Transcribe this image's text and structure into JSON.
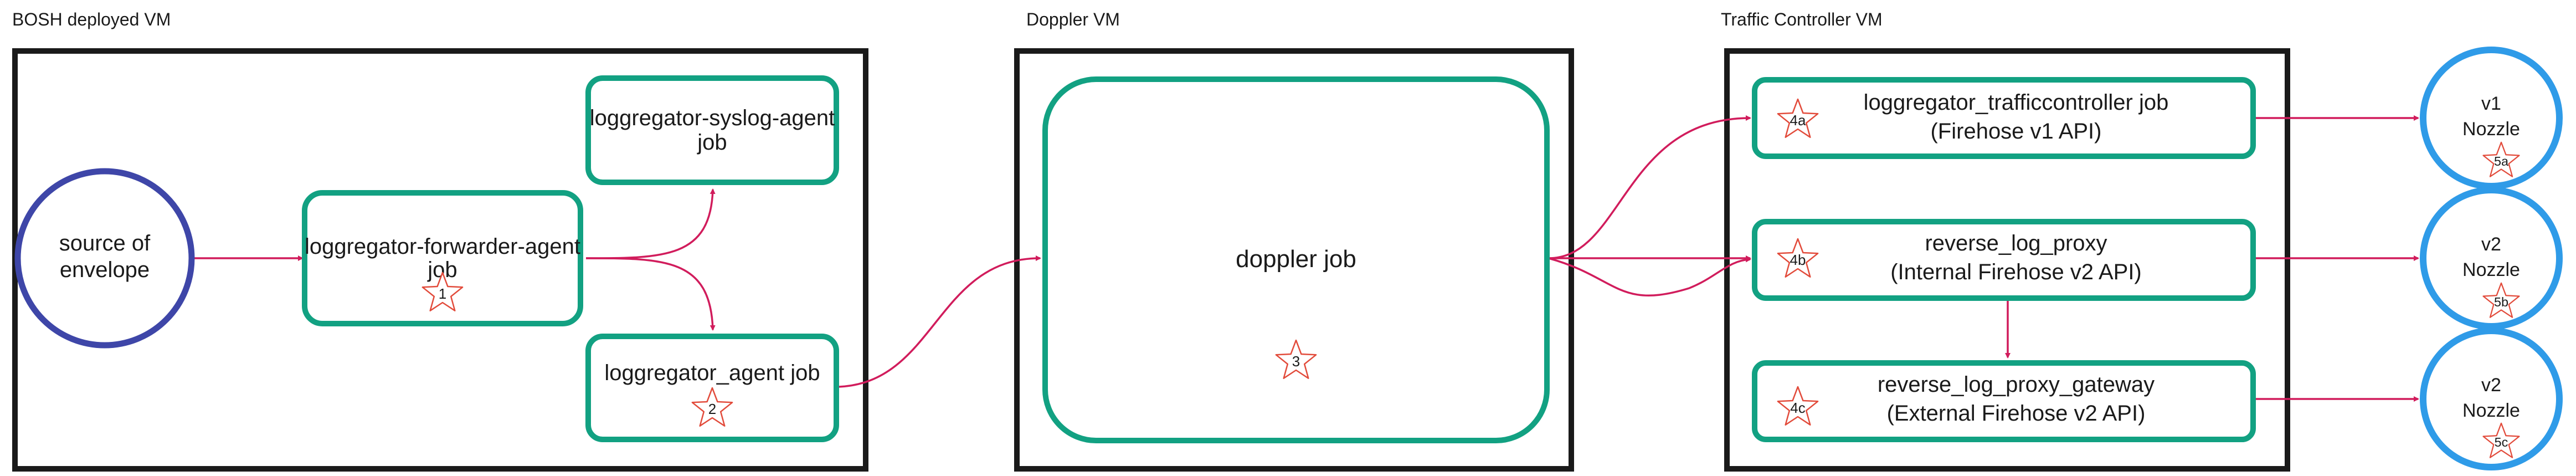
{
  "vms": {
    "bosh": {
      "label": "BOSH deployed VM"
    },
    "doppler": {
      "label": "Doppler VM"
    },
    "traffic": {
      "label": "Traffic Controller VM"
    }
  },
  "nodes": {
    "source": {
      "line1": "source of",
      "line2": "envelope"
    },
    "forwarder": {
      "line1": "loggregator-forwarder-agent",
      "line2": "job",
      "star": "1"
    },
    "syslog": {
      "line1": "loggregator-syslog-agent",
      "line2": "job"
    },
    "agent": {
      "line1": "loggregator_agent job",
      "star": "2"
    },
    "doppler_job": {
      "line1": "doppler job",
      "star": "3"
    },
    "tc": {
      "line1": "loggregator_trafficcontroller job",
      "line2": "(Firehose v1 API)",
      "star": "4a"
    },
    "rlp": {
      "line1": "reverse_log_proxy",
      "line2": "(Internal Firehose v2 API)",
      "star": "4b"
    },
    "rlpg": {
      "line1": "reverse_log_proxy_gateway",
      "line2": "(External Firehose v2 API)",
      "star": "4c"
    }
  },
  "nozzles": {
    "a": {
      "line1": "v1",
      "line2": "Nozzle",
      "star": "5a"
    },
    "b": {
      "line1": "v2",
      "line2": "Nozzle",
      "star": "5b"
    },
    "c": {
      "line1": "v2",
      "line2": "Nozzle",
      "star": "5c"
    }
  },
  "colors": {
    "vm_border": "#1a1a1a",
    "job_border": "#12a182",
    "source_border": "#3e46a8",
    "nozzle_border": "#2f9be8",
    "arrow": "#d11c5c",
    "star": "#e24b3b"
  }
}
